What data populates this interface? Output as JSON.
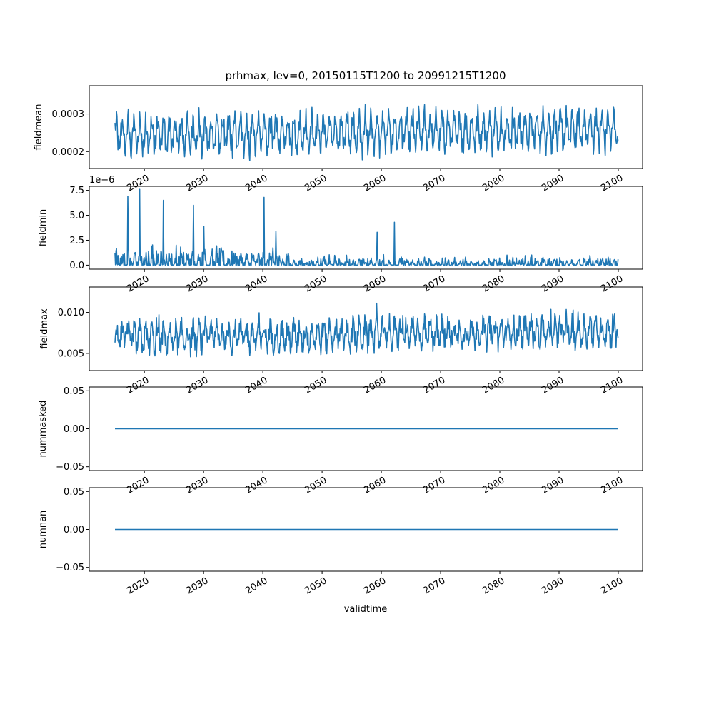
{
  "figure": {
    "title": "prhmax, lev=0, 20150115T1200 to 20991215T1200",
    "xlabel": "validtime",
    "line_color": "#1f77b4"
  },
  "chart_data": [
    {
      "type": "line",
      "ylabel": "fieldmean",
      "x_range": [
        "2015-01-15",
        "2099-12-15"
      ],
      "xlim": [
        2010.7,
        2104.1
      ],
      "ylim": [
        0.000155,
        0.000375
      ],
      "yticks": [
        0.0002,
        0.0003
      ],
      "ytick_labels": [
        "0.0002",
        "0.0003"
      ],
      "xtick_labels": [
        "2020",
        "2030",
        "2040",
        "2050",
        "2060",
        "2070",
        "2080",
        "2090",
        "2100"
      ],
      "sampling": "monthly",
      "summary": {
        "typical_min": 0.00019,
        "typical_max": 0.00031,
        "peak": 0.000365,
        "trough": 0.00016
      }
    },
    {
      "type": "line",
      "ylabel": "fieldmin",
      "offset_label": "1e−6",
      "x_range": [
        "2015-01-15",
        "2099-12-15"
      ],
      "xlim": [
        2010.7,
        2104.1
      ],
      "ylim": [
        -0.4,
        7.9
      ],
      "yticks": [
        0.0,
        2.5,
        5.0,
        7.5
      ],
      "ytick_labels": [
        "0.0",
        "2.5",
        "5.0",
        "7.5"
      ],
      "xtick_labels": [
        "2020",
        "2030",
        "2040",
        "2050",
        "2060",
        "2070",
        "2080",
        "2090",
        "2100"
      ],
      "sampling": "monthly",
      "spikes": [
        {
          "x": 2017.2,
          "y": 6.9
        },
        {
          "x": 2019.2,
          "y": 7.6
        },
        {
          "x": 2023.2,
          "y": 6.5
        },
        {
          "x": 2028.3,
          "y": 6.0
        },
        {
          "x": 2040.2,
          "y": 6.8
        },
        {
          "x": 2062.2,
          "y": 4.3
        },
        {
          "x": 2059.3,
          "y": 3.3
        },
        {
          "x": 2042.2,
          "y": 3.4
        },
        {
          "x": 2030.0,
          "y": 3.9
        }
      ]
    },
    {
      "type": "line",
      "ylabel": "fieldmax",
      "x_range": [
        "2015-01-15",
        "2099-12-15"
      ],
      "xlim": [
        2010.7,
        2104.1
      ],
      "ylim": [
        0.0029,
        0.0131
      ],
      "yticks": [
        0.005,
        0.01
      ],
      "ytick_labels": [
        "0.005",
        "0.010"
      ],
      "xtick_labels": [
        "2020",
        "2030",
        "2040",
        "2050",
        "2060",
        "2070",
        "2080",
        "2090",
        "2100"
      ],
      "sampling": "monthly",
      "summary": {
        "typical_min": 0.0055,
        "typical_max": 0.0085,
        "peak": 0.0128,
        "trough": 0.0033
      }
    },
    {
      "type": "line",
      "ylabel": "nummasked",
      "x_range": [
        "2015-01-15",
        "2099-12-15"
      ],
      "xlim": [
        2010.7,
        2104.1
      ],
      "ylim": [
        -0.055,
        0.055
      ],
      "yticks": [
        -0.05,
        0.0,
        0.05
      ],
      "ytick_labels": [
        "−0.05",
        "0.00",
        "0.05"
      ],
      "xtick_labels": [
        "2020",
        "2030",
        "2040",
        "2050",
        "2060",
        "2070",
        "2080",
        "2090",
        "2100"
      ],
      "values_constant": 0.0
    },
    {
      "type": "line",
      "ylabel": "numnan",
      "x_range": [
        "2015-01-15",
        "2099-12-15"
      ],
      "xlim": [
        2010.7,
        2104.1
      ],
      "ylim": [
        -0.055,
        0.055
      ],
      "yticks": [
        -0.05,
        0.0,
        0.05
      ],
      "ytick_labels": [
        "−0.05",
        "0.00",
        "0.05"
      ],
      "xtick_labels": [
        "2020",
        "2030",
        "2040",
        "2050",
        "2060",
        "2070",
        "2080",
        "2090",
        "2100"
      ],
      "values_constant": 0.0
    }
  ]
}
